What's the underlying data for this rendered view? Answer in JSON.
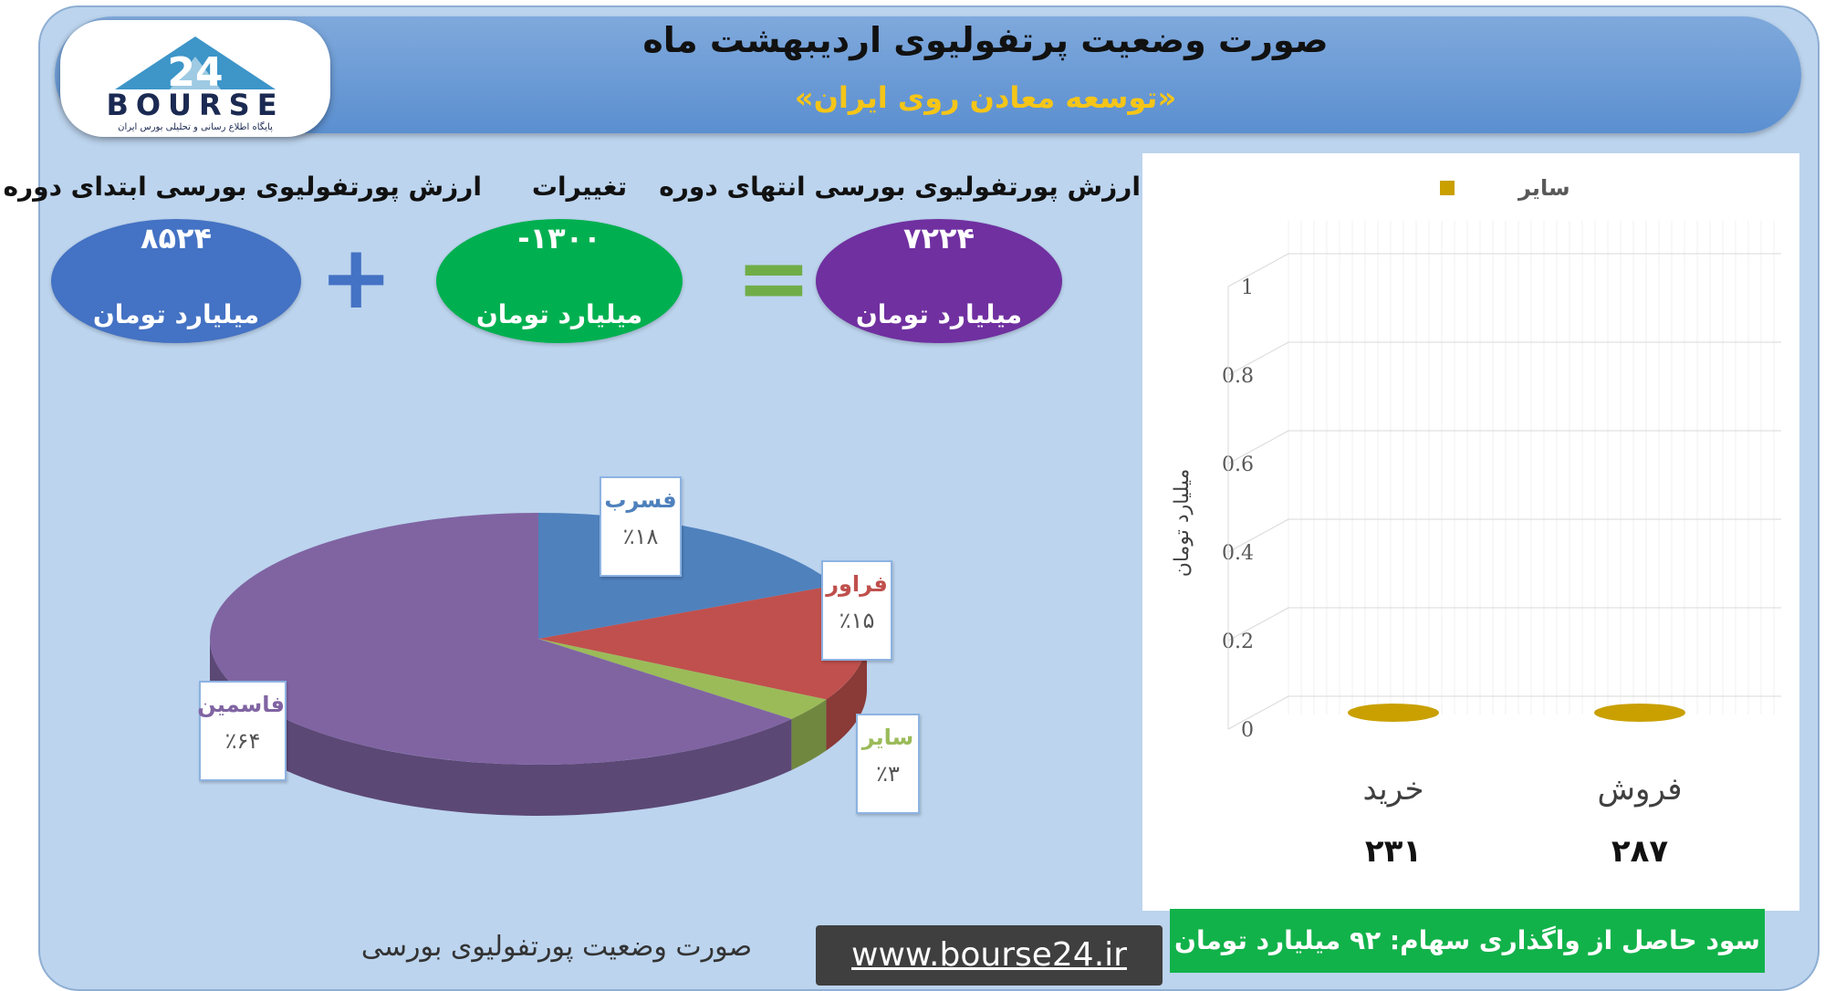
{
  "header": {
    "title": "صورت وضعیت پرتفولیوی اردیبهشت ماه",
    "subtitle": "«توسعه معادن روی ایران»"
  },
  "logo": {
    "number": "24",
    "name": "BOURSE",
    "tagline": "پایگاه اطلاع رسانی و تحلیلی بورس ایران"
  },
  "summary": {
    "start": {
      "label": "ارزش پورتفولیوی بورسی ابتدای دوره",
      "value": "۸۵۲۴",
      "unit": "میلیارد تومان",
      "color": "#4472c4"
    },
    "change": {
      "label": "تغییرات",
      "value": "-۱۳۰۰",
      "unit": "میلیارد تومان",
      "color": "#00b050"
    },
    "end": {
      "label": "ارزش پورتفولیوی بورسی انتهای دوره",
      "value": "۷۲۲۴",
      "unit": "میلیارد تومان",
      "color": "#7030a0"
    },
    "plus_sign": "+",
    "equals_sign": "="
  },
  "chart_data": [
    {
      "type": "pie",
      "title": "صورت وضعیت پورتفولیوی بورسی",
      "slices": [
        {
          "label": "فسرب",
          "value": 18,
          "display": "٪۱۸",
          "color": "#4f81bd"
        },
        {
          "label": "فراور",
          "value": 15,
          "display": "٪۱۵",
          "color": "#c0504d"
        },
        {
          "label": "سایر",
          "value": 3,
          "display": "٪۳",
          "color": "#9bbb59"
        },
        {
          "label": "فاسمین",
          "value": 64,
          "display": "٪۶۴",
          "color": "#8064a2"
        }
      ]
    },
    {
      "type": "bar",
      "categories": [
        "خرید",
        "فروش"
      ],
      "category_values": [
        "۲۳۱",
        "۲۸۷"
      ],
      "series": [
        {
          "name": "سایر",
          "values": [
            0,
            0
          ],
          "color": "#c9a000"
        }
      ],
      "ylabel": "میلیارد تومان",
      "ylim": [
        0,
        1
      ],
      "yticks": [
        "0",
        "0.2",
        "0.4",
        "0.6",
        "0.8",
        "1"
      ],
      "grid": true,
      "legend": "top"
    }
  ],
  "profit_text": "سود حاصل از واگذاری سهام: ۹۲ میلیارد تومان",
  "website": "www.bourse24.ir"
}
